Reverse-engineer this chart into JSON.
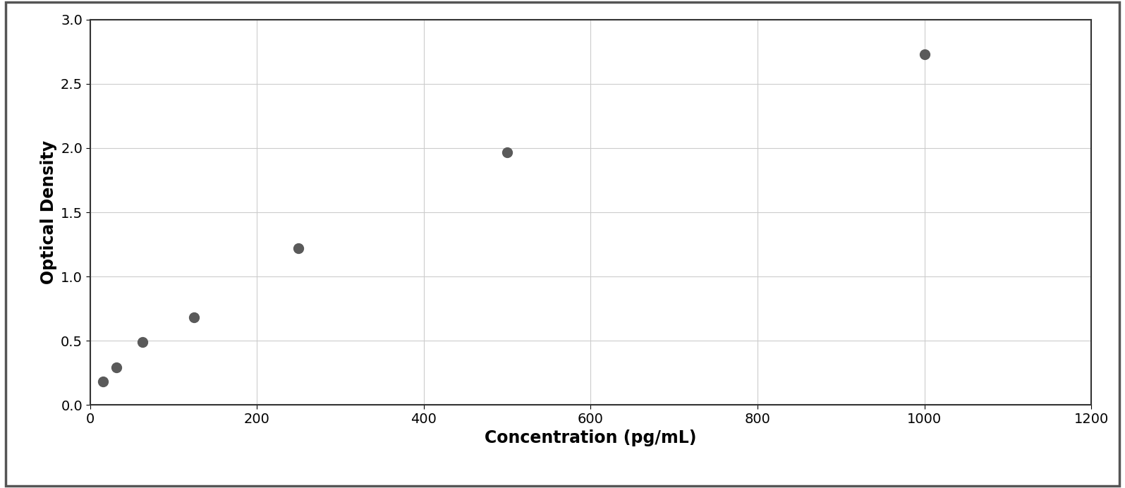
{
  "x_data": [
    15.6,
    31.25,
    62.5,
    125,
    250,
    500,
    1000
  ],
  "y_data": [
    0.185,
    0.295,
    0.49,
    0.685,
    1.22,
    1.965,
    2.73
  ],
  "xlabel": "Concentration (pg/mL)",
  "ylabel": "Optical Density",
  "xlim": [
    0,
    1200
  ],
  "ylim": [
    0,
    3
  ],
  "xticks": [
    0,
    200,
    400,
    600,
    800,
    1000,
    1200
  ],
  "yticks": [
    0,
    0.5,
    1.0,
    1.5,
    2.0,
    2.5,
    3.0
  ],
  "marker_color": "#5a5a5a",
  "line_color": "#5a5a5a",
  "background_color": "#ffffff",
  "grid_color": "#cccccc",
  "marker_size": 10,
  "line_width": 1.8,
  "xlabel_fontsize": 17,
  "ylabel_fontsize": 17,
  "tick_fontsize": 14,
  "xlabel_fontweight": "bold",
  "ylabel_fontweight": "bold",
  "border_color": "#555555",
  "border_linewidth": 2.5,
  "curve_xlim_end": 1050
}
